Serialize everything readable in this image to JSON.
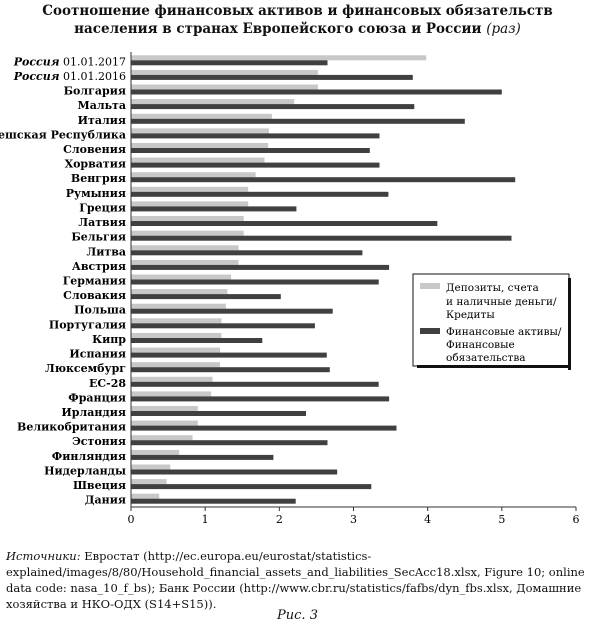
{
  "title_line1": "Соотношение финансовых активов и финансовых обязательств",
  "title_line2": "населения в странах Европейского союза и России",
  "title_unit": "(раз)",
  "chart_data": {
    "type": "bar",
    "orientation": "horizontal",
    "title": "Соотношение финансовых активов и финансовых обязательств населения в странах Европейского союза и России (раз)",
    "xlim": [
      0,
      6
    ],
    "x_ticks": [
      "0",
      "1",
      "2",
      "3",
      "4",
      "5",
      "6"
    ],
    "grid": false,
    "legend_position": "right",
    "categories": [
      "Россия 01.01.2017",
      "Россия 01.01.2016",
      "Болгария",
      "Мальта",
      "Италия",
      "Чешская Республика",
      "Словения",
      "Хорватия",
      "Венгрия",
      "Румыния",
      "Греция",
      "Латвия",
      "Бельгия",
      "Литва",
      "Австрия",
      "Германия",
      "Словакия",
      "Польша",
      "Португалия",
      "Кипр",
      "Испания",
      "Люксембург",
      "ЕС-28",
      "Франция",
      "Ирландия",
      "Великобритания",
      "Эстония",
      "Финляндия",
      "Нидерланды",
      "Швеция",
      "Дания"
    ],
    "italic_categories": [
      "Россия 01.01.2017",
      "Россия 01.01.2016"
    ],
    "series": [
      {
        "name": "Депозиты, счета и наличные деньги/ Кредиты",
        "color": "#c8c8c8",
        "values": [
          3.98,
          2.52,
          2.52,
          2.2,
          1.9,
          1.86,
          1.85,
          1.8,
          1.68,
          1.58,
          1.58,
          1.52,
          1.52,
          1.45,
          1.45,
          1.35,
          1.3,
          1.28,
          1.22,
          1.22,
          1.2,
          1.2,
          1.1,
          1.08,
          0.9,
          0.9,
          0.83,
          0.65,
          0.53,
          0.48,
          0.38
        ]
      },
      {
        "name": "Финансовые активы/ Финансовые обязательства",
        "color": "#404040",
        "values": [
          2.65,
          3.8,
          5.0,
          3.82,
          4.5,
          3.35,
          3.22,
          3.35,
          5.18,
          3.47,
          2.23,
          4.13,
          5.13,
          3.12,
          3.48,
          3.34,
          2.02,
          2.72,
          2.48,
          1.77,
          2.64,
          2.68,
          3.34,
          3.48,
          2.36,
          3.58,
          2.65,
          1.92,
          2.78,
          3.24,
          2.22
        ]
      }
    ]
  },
  "legend": {
    "item1_line1": "Депозиты, счета",
    "item1_line2": "и наличные деньги/",
    "item1_line3": "Кредиты",
    "item2_line1": "Финансовые активы/",
    "item2_line2": "Финансовые",
    "item2_line3": "обязательства"
  },
  "sources": {
    "lead": "Источники:",
    "text": " Евростат (http://ec.europa.eu/eurostat/statistics-explained/images/8/80/Household_financial_assets_and_liabilities_SecAcc18.xlsx, Figure 10; online data code: nasa_10_f_bs); Банк России (http://www.cbr.ru/statistics/fafbs/dyn_fbs.xlsx, Домашние хозяйства и НКО-ОДХ (S14+S15))."
  },
  "figure_caption": "Рис. 3"
}
